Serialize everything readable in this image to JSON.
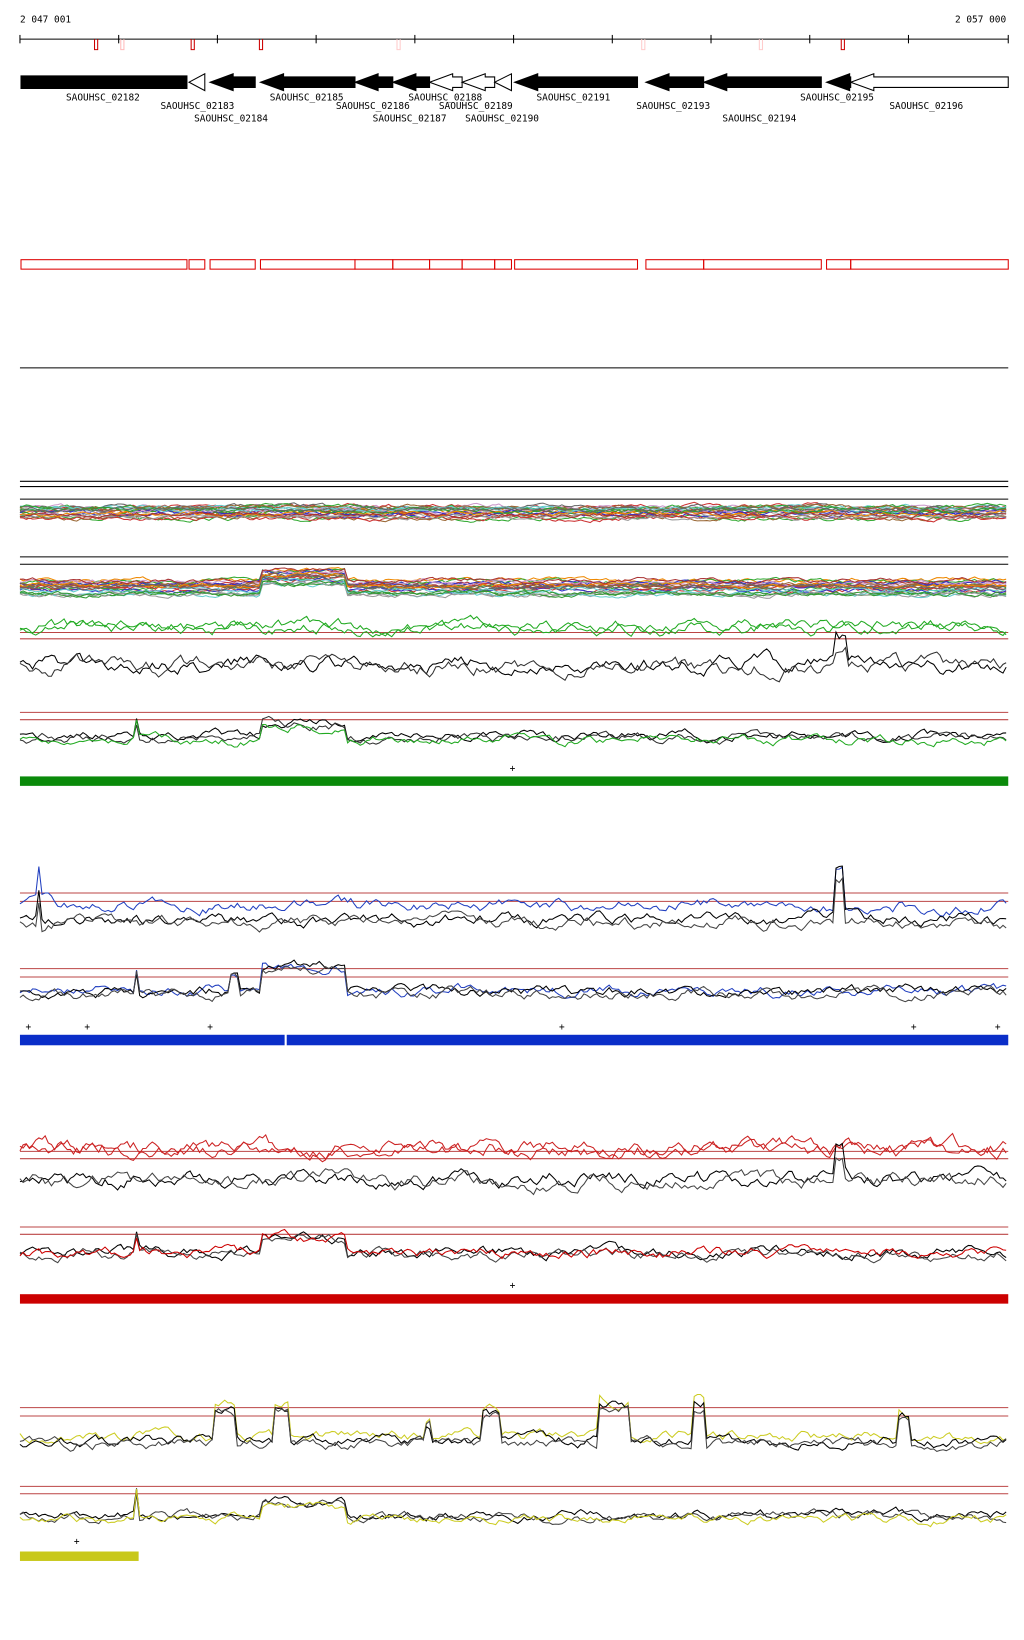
{
  "header": {
    "start": "2 047 001",
    "end": "2 057 000"
  },
  "genes": [
    {
      "label": "SAOUHSC_02182"
    },
    {
      "label": "SAOUHSC_02183"
    },
    {
      "label": "SAOUHSC_02184"
    },
    {
      "label": "SAOUHSC_02185"
    },
    {
      "label": "SAOUHSC_02186"
    },
    {
      "label": "SAOUHSC_02187"
    },
    {
      "label": "SAOUHSC_02188"
    },
    {
      "label": "SAOUHSC_02189"
    },
    {
      "label": "SAOUHSC_02190"
    },
    {
      "label": "SAOUHSC_02191"
    },
    {
      "label": "SAOUHSC_02193"
    },
    {
      "label": "SAOUHSC_02194"
    },
    {
      "label": "SAOUHSC_02195"
    },
    {
      "label": "SAOUHSC_02196"
    }
  ],
  "panels": [
    {
      "marks": [
        "+"
      ]
    },
    {
      "marks": [
        "+",
        "+",
        "+",
        "+",
        "+",
        "+"
      ]
    },
    {
      "marks": [
        "+"
      ]
    },
    {
      "marks": [
        "+"
      ]
    }
  ]
}
